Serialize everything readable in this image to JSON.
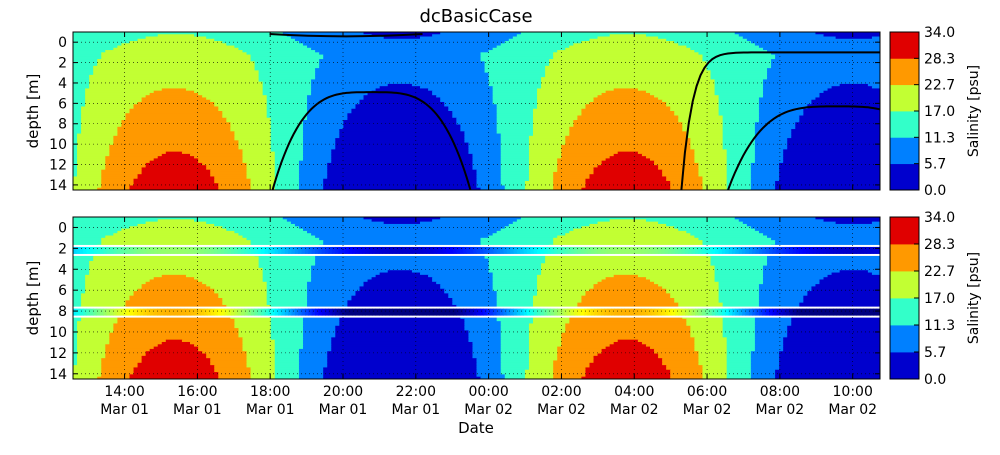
{
  "chart_data": {
    "type": "heatmap",
    "title": "dcBasicCase",
    "xlabel": "Date",
    "ylabel": "depth [m]",
    "x_ticks": [
      {
        "time": "2014-03-01T14:00",
        "line1": "14:00",
        "line2": "Mar 01"
      },
      {
        "time": "2014-03-01T16:00",
        "line1": "16:00",
        "line2": "Mar 01"
      },
      {
        "time": "2014-03-01T18:00",
        "line1": "18:00",
        "line2": "Mar 01"
      },
      {
        "time": "2014-03-01T20:00",
        "line1": "20:00",
        "line2": "Mar 01"
      },
      {
        "time": "2014-03-01T22:00",
        "line1": "22:00",
        "line2": "Mar 01"
      },
      {
        "time": "2014-03-02T00:00",
        "line1": "00:00",
        "line2": "Mar 02"
      },
      {
        "time": "2014-03-02T02:00",
        "line1": "02:00",
        "line2": "Mar 02"
      },
      {
        "time": "2014-03-02T04:00",
        "line1": "04:00",
        "line2": "Mar 02"
      },
      {
        "time": "2014-03-02T06:00",
        "line1": "06:00",
        "line2": "Mar 02"
      },
      {
        "time": "2014-03-02T08:00",
        "line1": "08:00",
        "line2": "Mar 02"
      },
      {
        "time": "2014-03-02T10:00",
        "line1": "10:00",
        "line2": "Mar 02"
      }
    ],
    "xlim": [
      "2014-03-01T12:35",
      "2014-03-02T10:45"
    ],
    "y_ticks": [
      0,
      2,
      4,
      6,
      8,
      10,
      12,
      14
    ],
    "ylim": [
      14.5,
      -1.0
    ],
    "y_inverted": true,
    "grid": true,
    "colorbar": {
      "label": "Salinity [psu]",
      "ticks": [
        "0.0",
        "5.7",
        "11.3",
        "17.0",
        "22.7",
        "28.3",
        "34.0"
      ],
      "levels": [
        0.0,
        5.7,
        11.3,
        17.0,
        22.7,
        28.3,
        34.0
      ],
      "colors": [
        "#0000cd",
        "#0080ff",
        "#33ffc9",
        "#c2ff33",
        "#ff9900",
        "#e00000"
      ]
    },
    "panels": [
      {
        "id": "top",
        "has_contours": true,
        "sensors": []
      },
      {
        "id": "bottom",
        "has_contours": false,
        "sensors": [
          {
            "depth": 2.2
          },
          {
            "depth": 8.1
          }
        ]
      }
    ]
  }
}
